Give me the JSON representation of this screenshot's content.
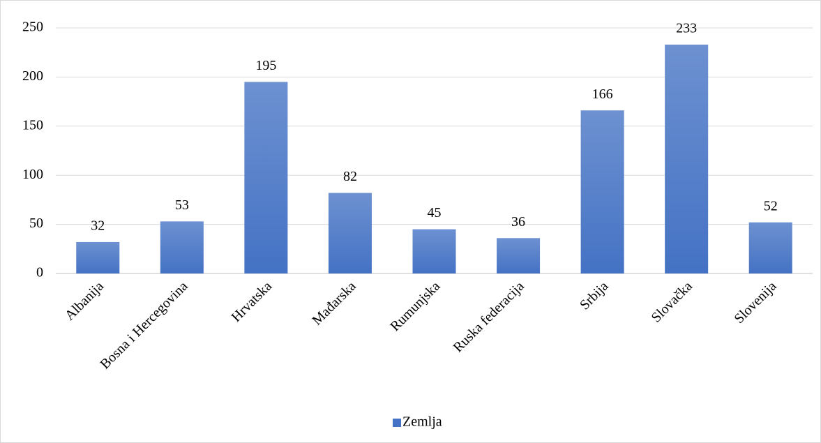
{
  "chart_data": {
    "type": "bar",
    "categories": [
      "Albanija",
      "Bosna i Hercegovina",
      "Hrvatska",
      "Mađarska",
      "Rumunjska",
      "Ruska federacija",
      "Srbija",
      "Slovačka",
      "Slovenija"
    ],
    "series": [
      {
        "name": "Zemlja",
        "color": "#4472c4",
        "values": [
          32,
          53,
          195,
          82,
          45,
          36,
          166,
          233,
          52
        ]
      }
    ],
    "ylim": [
      0,
      250
    ],
    "yticks": [
      0,
      50,
      100,
      150,
      200,
      250
    ],
    "grid": true,
    "legend": "bottom"
  }
}
